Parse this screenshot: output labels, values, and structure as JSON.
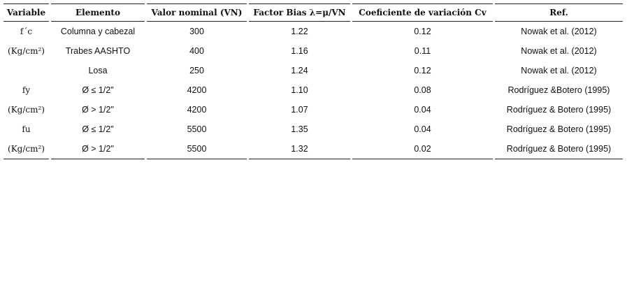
{
  "table": {
    "headers": [
      "Variable",
      "Elemento",
      "Valor nominal (VN)",
      "Factor Bias λ=μ/VN",
      "Coeficiente de variación Cv",
      "Ref."
    ],
    "rows": [
      {
        "variable": "f´c",
        "elemento": "Columna y cabezal",
        "vn": "300",
        "bias": "1.22",
        "cv": "0.12",
        "ref": "Nowak et al. (2012)"
      },
      {
        "variable": "(Kg/cm²)",
        "elemento": "Trabes AASHTO",
        "vn": "400",
        "bias": "1.16",
        "cv": "0.11",
        "ref": "Nowak et al. (2012)"
      },
      {
        "elemento": "Losa",
        "vn": "250",
        "bias": "1.24",
        "cv": "0.12",
        "ref": "Nowak et al. (2012)"
      },
      {
        "variable": "fy",
        "elemento": "Ø ≤ 1/2\"",
        "vn": "4200",
        "bias": "1.10",
        "cv": "0.08",
        "ref": "Rodríguez &Botero (1995)"
      },
      {
        "variable": "(Kg/cm²)",
        "elemento": "Ø > 1/2\"",
        "vn": "4200",
        "bias": "1.07",
        "cv": "0.04",
        "ref": "Rodríguez & Botero (1995)"
      },
      {
        "variable": "fu",
        "elemento": "Ø ≤ 1/2\"",
        "vn": "5500",
        "bias": "1.35",
        "cv": "0.04",
        "ref": "Rodríguez & Botero (1995)"
      },
      {
        "variable": "(Kg/cm²)",
        "elemento": "Ø > 1/2\"",
        "vn": "5500",
        "bias": "1.32",
        "cv": "0.02",
        "ref": "Rodríguez & Botero (1995)"
      }
    ]
  }
}
